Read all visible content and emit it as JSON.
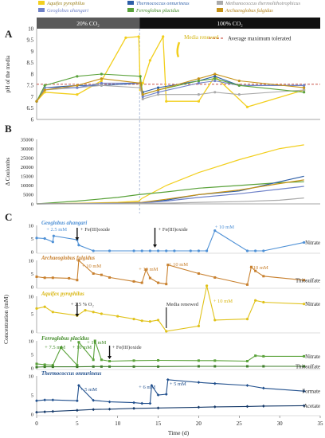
{
  "legend": [
    {
      "label": "Aquifex pyrophilus",
      "color": "#f2cf1e"
    },
    {
      "label": "Thermococcus onnurineus",
      "color": "#2e5fa8"
    },
    {
      "label": "Methanococcus thermolithotrophicus",
      "color": "#aaaaaa"
    },
    {
      "label": "Geoglobus ahangari",
      "color": "#6f82c9"
    },
    {
      "label": "Ferroglobus placidus",
      "color": "#5aa23a"
    },
    {
      "label": "Archaeoglobus fulgidus",
      "color": "#c69318"
    }
  ],
  "colors": {
    "aquifex": "#f2cf1e",
    "thermococcus": "#2e5fa8",
    "methanococcus": "#aaaaaa",
    "geoglobus": "#6f82c9",
    "ferroglobus": "#5aa23a",
    "archaeoglobus": "#c69318",
    "geoglobus_C": "#4f91d6",
    "archaeoglobus_C": "#c8802e",
    "aquifex_C": "#e0c21a",
    "ferroglobus_C": "#5aa23a",
    "thermococcus_C": "#1f4e8c",
    "threshold": "#c0392b",
    "divider": "#8aa0c8"
  },
  "panel_A": {
    "letter": "A",
    "band_left": "20% CO₂",
    "band_right": "100% CO₂",
    "threshold_label": "Average maximum tolerated",
    "annotation": "Media renewed",
    "ylabel": "pH of the media",
    "yticks": [
      "6",
      "6.5",
      "7",
      "7.5",
      "8",
      "8.5",
      "9",
      "9.5",
      "10"
    ]
  },
  "panel_B": {
    "letter": "B",
    "ylabel": "Δ Coulombs",
    "yticks": [
      "0",
      "5000",
      "10000",
      "15000",
      "20000",
      "25000",
      "30000",
      "35000"
    ]
  },
  "panel_C": {
    "letter": "C",
    "ylabel": "Concentration (mM)",
    "xlabel": "Time (d)",
    "xticks": [
      "0",
      "5",
      "10",
      "15",
      "20",
      "25",
      "30",
      "35"
    ],
    "sub": [
      {
        "title": "Geoglobus ahangari",
        "labels": [
          "Nitrate"
        ],
        "notes": [
          "+ 2.5 mM",
          "+ Fe(III)oxide",
          "+ Fe(III)oxide",
          "+ 10 mM"
        ]
      },
      {
        "title": "Archaeoglobus fulgidus",
        "labels": [
          "Thiosulfate"
        ],
        "notes": [
          "+ 10 mM",
          "+ 10 mM",
          "+ 10 mM",
          "+ 10 mM"
        ]
      },
      {
        "title": "Aquifex pyrophilus",
        "labels": [
          "Nitrate"
        ],
        "notes": [
          "+ 2.5 % O₂",
          "Media renewed",
          "+ 10 mM"
        ]
      },
      {
        "title": "Ferroglobus placidus",
        "labels": [
          "Nitrate",
          "Thiosulfate"
        ],
        "notes": [
          "+ 7.5 mM",
          "+ 10 mM",
          "+ 10 mM",
          "+ Fe(III)oxide"
        ]
      },
      {
        "title": "Thermococcus onnurineus",
        "labels": [
          "Formate",
          "Acetate"
        ],
        "notes": [
          "+ 5 mM",
          "+ 6 mM",
          "+ 5 mM"
        ]
      }
    ]
  },
  "chart_data": [
    {
      "type": "line",
      "title": "",
      "ylabel": "pH of the media",
      "xlim": [
        0,
        35
      ],
      "ylim": [
        6,
        10
      ],
      "threshold": 7.55,
      "series": [
        {
          "name": "Aquifex pyrophilus",
          "x": [
            0,
            1,
            5,
            8,
            11,
            12.6,
            12.8,
            13.1,
            14,
            15.6,
            16,
            20,
            22,
            26,
            33
          ],
          "y": [
            6.8,
            7.2,
            7.1,
            7.7,
            9.6,
            9.65,
            7.3,
            7.6,
            8.6,
            9.65,
            6.8,
            6.8,
            7.9,
            6.55,
            7.3
          ]
        },
        {
          "name": "Thermococcus onnurineus",
          "x": [
            0,
            1,
            5,
            8,
            12.8,
            13.1,
            15,
            20,
            22,
            25,
            33
          ],
          "y": [
            6.8,
            7.4,
            7.5,
            7.5,
            7.6,
            7.2,
            7.4,
            7.7,
            7.9,
            7.5,
            7.5
          ]
        },
        {
          "name": "Methanococcus thermolithotrophicus",
          "x": [
            0,
            1,
            5,
            8,
            12.8,
            13.1,
            15,
            20,
            22,
            25,
            33
          ],
          "y": [
            6.8,
            7.3,
            7.4,
            7.5,
            7.4,
            6.9,
            7.1,
            7.1,
            7.2,
            7.1,
            7.3
          ]
        },
        {
          "name": "Geoglobus ahangari",
          "x": [
            0,
            1,
            5,
            8,
            12.8,
            13.1,
            15,
            20,
            22,
            25,
            33
          ],
          "y": [
            6.8,
            7.4,
            7.4,
            7.6,
            7.6,
            7.0,
            7.2,
            7.6,
            7.7,
            7.5,
            7.5
          ]
        },
        {
          "name": "Ferroglobus placidus",
          "x": [
            0,
            1,
            5,
            8,
            12.8,
            13.1,
            15,
            20,
            22,
            25,
            33
          ],
          "y": [
            6.8,
            7.5,
            7.9,
            8.0,
            7.9,
            7.1,
            7.3,
            7.7,
            7.8,
            7.5,
            7.2
          ]
        },
        {
          "name": "Archaeoglobus fulgidus",
          "x": [
            0,
            1,
            5,
            8,
            12.8,
            13.1,
            15,
            20,
            22,
            25,
            33
          ],
          "y": [
            6.8,
            7.3,
            7.5,
            7.8,
            7.6,
            7.1,
            7.3,
            7.8,
            8.0,
            7.7,
            7.4
          ]
        }
      ]
    },
    {
      "type": "line",
      "title": "",
      "ylabel": "Δ Coulombs",
      "xlim": [
        0,
        35
      ],
      "ylim": [
        0,
        35000
      ],
      "series": [
        {
          "name": "Aquifex pyrophilus",
          "x": [
            0,
            5,
            10,
            12.6,
            13,
            16,
            20,
            25,
            30,
            33
          ],
          "y": [
            0,
            300,
            800,
            1500,
            3000,
            10000,
            17000,
            24000,
            30000,
            32000
          ]
        },
        {
          "name": "Ferroglobus placidus",
          "x": [
            0,
            5,
            10,
            12.6,
            16,
            20,
            25,
            30,
            33
          ],
          "y": [
            0,
            1500,
            3500,
            5000,
            6500,
            8500,
            10000,
            11500,
            12000
          ]
        },
        {
          "name": "Thermococcus onnurineus",
          "x": [
            0,
            5,
            10,
            13,
            16,
            20,
            25,
            30,
            33
          ],
          "y": [
            0,
            150,
            300,
            600,
            2000,
            5000,
            7000,
            12000,
            15000
          ]
        },
        {
          "name": "Archaeoglobus fulgidus",
          "x": [
            0,
            5,
            10,
            13,
            16,
            20,
            25,
            30,
            33
          ],
          "y": [
            0,
            200,
            500,
            800,
            2500,
            5000,
            7500,
            11000,
            13000
          ]
        },
        {
          "name": "Geoglobus ahangari",
          "x": [
            0,
            5,
            10,
            13,
            16,
            20,
            25,
            30,
            33
          ],
          "y": [
            0,
            100,
            300,
            500,
            1500,
            3500,
            5500,
            8000,
            9500
          ]
        },
        {
          "name": "Methanococcus thermolithotrophicus",
          "x": [
            0,
            5,
            10,
            13,
            16,
            20,
            25,
            30,
            33
          ],
          "y": [
            0,
            50,
            100,
            200,
            400,
            800,
            1200,
            2000,
            3200
          ]
        }
      ]
    },
    {
      "type": "line",
      "title": "Geoglobus ahangari",
      "ylabel": "Concentration (mM)",
      "xlim": [
        0,
        35
      ],
      "ylim": [
        0,
        10
      ],
      "series": [
        {
          "name": "Nitrate",
          "x": [
            0,
            1,
            2,
            2.1,
            5,
            5.2,
            7,
            9,
            12,
            13,
            14,
            15,
            16,
            17,
            19,
            20,
            21,
            22,
            26,
            27,
            28,
            33
          ],
          "y": [
            5.2,
            5,
            3.7,
            6,
            4.5,
            2.5,
            0.3,
            0.3,
            0.3,
            0.3,
            0.3,
            0.3,
            0.3,
            0.3,
            0.3,
            0.3,
            0.3,
            8,
            0.3,
            0.3,
            0.3,
            3.5
          ]
        }
      ]
    },
    {
      "type": "line",
      "title": "Archaeoglobus fulgidus",
      "ylabel": "Concentration (mM)",
      "xlim": [
        0,
        35
      ],
      "ylim": [
        0,
        10
      ],
      "series": [
        {
          "name": "Thiosulfate",
          "x": [
            0,
            1,
            2,
            4,
            5,
            5.2,
            7,
            8,
            9,
            12,
            13,
            13.5,
            14,
            15,
            16,
            16.2,
            20,
            22,
            26,
            26.5,
            27,
            28,
            33
          ],
          "y": [
            3.8,
            3.4,
            3.4,
            3.2,
            2.5,
            10,
            5,
            4.5,
            3.5,
            2,
            1.5,
            6.5,
            3.3,
            1.5,
            1,
            8.3,
            5,
            3.5,
            0.8,
            7.5,
            6,
            4,
            2.5
          ]
        }
      ]
    },
    {
      "type": "line",
      "title": "Aquifex pyrophilus",
      "ylabel": "Concentration (mM)",
      "xlim": [
        0,
        35
      ],
      "ylim": [
        0,
        10
      ],
      "series": [
        {
          "name": "Nitrate",
          "x": [
            0,
            1,
            2,
            5,
            6,
            7,
            8,
            10,
            12,
            13,
            14,
            15,
            16,
            20,
            21,
            22,
            26,
            27,
            28,
            33
          ],
          "y": [
            6.5,
            7,
            5.5,
            4.5,
            6,
            5.5,
            5,
            4.3,
            3.5,
            3,
            2.8,
            3.2,
            0,
            1.5,
            13,
            3.2,
            3.5,
            8.8,
            8.3,
            7.8
          ]
        }
      ]
    },
    {
      "type": "line",
      "title": "Ferroglobus placidus",
      "ylabel": "Concentration (mM)",
      "xlim": [
        0,
        35
      ],
      "ylim": [
        0,
        10
      ],
      "series": [
        {
          "name": "Nitrate",
          "x": [
            0,
            1,
            2,
            3,
            5,
            5.2,
            7,
            7.2,
            8,
            9,
            12,
            15,
            20,
            22,
            26,
            27,
            28,
            33
          ],
          "y": [
            1.5,
            1.2,
            1,
            7.5,
            1,
            9.5,
            3,
            10,
            3,
            2.5,
            2.7,
            2.8,
            2.7,
            2.7,
            2.5,
            4.5,
            4.3,
            4.3
          ]
        },
        {
          "name": "Thiosulfate",
          "x": [
            0,
            1,
            2,
            5,
            7,
            8,
            9,
            12,
            15,
            20,
            22,
            26,
            28,
            33
          ],
          "y": [
            0.3,
            0.4,
            0.4,
            0.4,
            0.5,
            0.5,
            0.5,
            0.5,
            0.5,
            0.6,
            0.6,
            0.6,
            0.6,
            0.6
          ]
        }
      ]
    },
    {
      "type": "line",
      "title": "Thermococcus onnurineus",
      "ylabel": "Concentration (mM)",
      "xlim": [
        0,
        35
      ],
      "ylim": [
        0,
        10
      ],
      "series": [
        {
          "name": "Formate",
          "x": [
            0,
            1,
            2,
            5,
            5.2,
            7,
            9,
            12,
            13,
            14,
            14.2,
            15,
            16,
            16.2,
            20,
            22,
            26,
            28,
            33
          ],
          "y": [
            3.5,
            3.7,
            3.7,
            3.5,
            7.5,
            3.6,
            3.2,
            3,
            2.8,
            2.8,
            7.5,
            5,
            5.2,
            9,
            8.3,
            8,
            7.5,
            6.8,
            6
          ]
        },
        {
          "name": "Acetate",
          "x": [
            0,
            1,
            2,
            5,
            7,
            9,
            12,
            15,
            20,
            22,
            26,
            28,
            33
          ],
          "y": [
            0.5,
            0.6,
            0.7,
            1,
            1.2,
            1.3,
            1.5,
            1.6,
            1.8,
            1.9,
            2,
            2.1,
            2.2
          ]
        }
      ]
    }
  ]
}
